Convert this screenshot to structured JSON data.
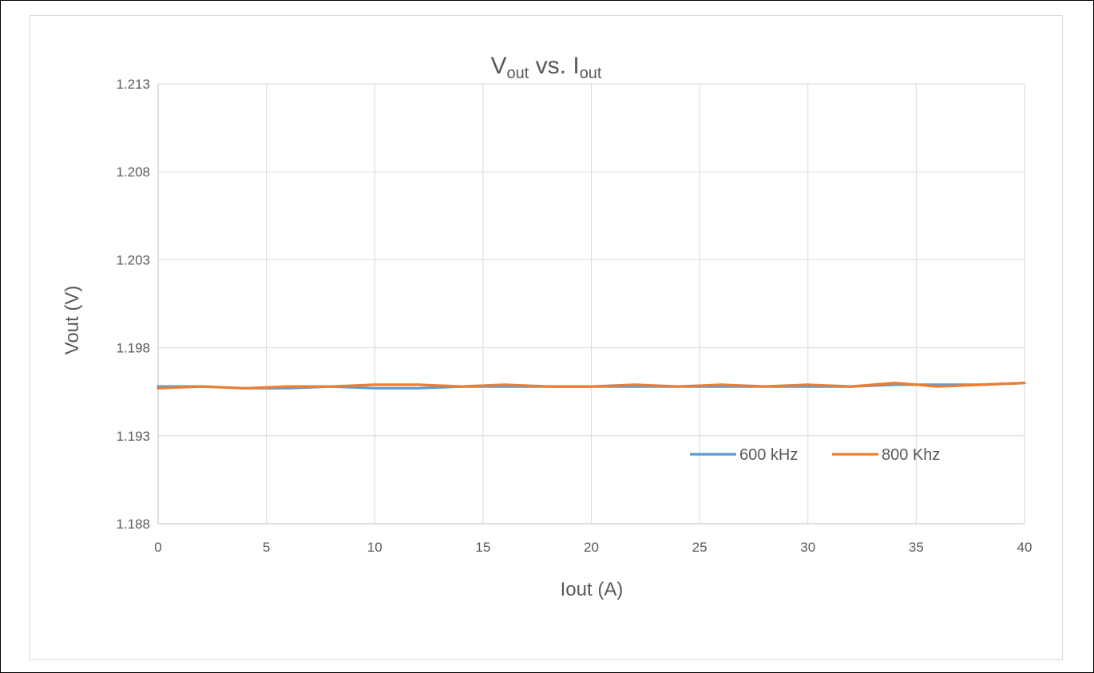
{
  "chart_data": {
    "type": "line",
    "title": {
      "base1": "V",
      "sub1": "out",
      "middle": " vs. ",
      "base2": "I",
      "sub2": "out"
    },
    "xlabel": "Iout (A)",
    "ylabel": "Vout (V)",
    "xlim": [
      0,
      40
    ],
    "ylim": [
      1.188,
      1.213
    ],
    "x_ticks": [
      "0",
      "5",
      "10",
      "15",
      "20",
      "25",
      "30",
      "35",
      "40"
    ],
    "y_ticks": [
      "1.188",
      "1.193",
      "1.198",
      "1.203",
      "1.208",
      "1.213"
    ],
    "grid": true,
    "legend_position": "inside-lower-right",
    "series": [
      {
        "name": "600 kHz",
        "color": "#5b9bd5",
        "points": [
          [
            0,
            1.1958
          ],
          [
            2,
            1.1958
          ],
          [
            4,
            1.1957
          ],
          [
            6,
            1.1957
          ],
          [
            8,
            1.1958
          ],
          [
            10,
            1.1957
          ],
          [
            12,
            1.1957
          ],
          [
            14,
            1.1958
          ],
          [
            16,
            1.1958
          ],
          [
            18,
            1.1958
          ],
          [
            20,
            1.1958
          ],
          [
            22,
            1.1958
          ],
          [
            24,
            1.1958
          ],
          [
            26,
            1.1958
          ],
          [
            28,
            1.1958
          ],
          [
            30,
            1.1958
          ],
          [
            32,
            1.1958
          ],
          [
            34,
            1.1959
          ],
          [
            36,
            1.1959
          ],
          [
            38,
            1.1959
          ],
          [
            40,
            1.196
          ]
        ]
      },
      {
        "name": "800 Khz",
        "color": "#ed7d31",
        "points": [
          [
            0,
            1.1957
          ],
          [
            2,
            1.1958
          ],
          [
            4,
            1.1957
          ],
          [
            6,
            1.1958
          ],
          [
            8,
            1.1958
          ],
          [
            10,
            1.1959
          ],
          [
            12,
            1.1959
          ],
          [
            14,
            1.1958
          ],
          [
            16,
            1.1959
          ],
          [
            18,
            1.1958
          ],
          [
            20,
            1.1958
          ],
          [
            22,
            1.1959
          ],
          [
            24,
            1.1958
          ],
          [
            26,
            1.1959
          ],
          [
            28,
            1.1958
          ],
          [
            30,
            1.1959
          ],
          [
            32,
            1.1958
          ],
          [
            34,
            1.196
          ],
          [
            36,
            1.1958
          ],
          [
            38,
            1.1959
          ],
          [
            40,
            1.196
          ]
        ]
      }
    ]
  }
}
